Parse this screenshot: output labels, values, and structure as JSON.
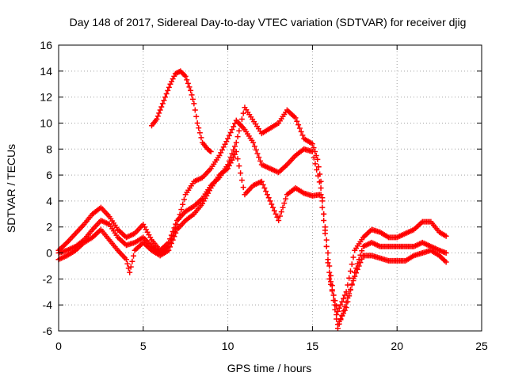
{
  "chart_data": {
    "type": "scatter",
    "title": "Day 148 of 2017, Sidereal Day-to-day VTEC variation (SDTVAR) for receiver djig",
    "xlabel": "GPS time / hours",
    "ylabel": "SDTVAR / TECUs",
    "xlim": [
      0,
      25
    ],
    "ylim": [
      -6,
      16
    ],
    "xticks": [
      "0",
      "5",
      "10",
      "15",
      "20",
      "25"
    ],
    "yticks": [
      "-6",
      "-4",
      "-2",
      "0",
      "2",
      "4",
      "6",
      "8",
      "10",
      "12",
      "14",
      "16"
    ],
    "grid": true,
    "marker": "+",
    "color": "#ff0000",
    "series": [
      {
        "name": "trace-1",
        "points": [
          [
            0,
            0.2
          ],
          [
            0.5,
            0.8
          ],
          [
            1,
            1.5
          ],
          [
            1.5,
            2.2
          ],
          [
            2,
            3
          ],
          [
            2.5,
            3.5
          ],
          [
            3,
            2.8
          ],
          [
            3.5,
            1.8
          ],
          [
            4,
            1.2
          ],
          [
            4.5,
            1.5
          ],
          [
            5,
            2.2
          ],
          [
            5.5,
            1
          ],
          [
            6,
            0.2
          ],
          [
            6.5,
            0.8
          ],
          [
            7,
            2.5
          ],
          [
            7.5,
            3.2
          ],
          [
            8,
            3.6
          ],
          [
            8.5,
            4.2
          ],
          [
            9,
            5.2
          ],
          [
            9.5,
            5.8
          ],
          [
            10,
            6.8
          ],
          [
            10.5,
            8.5
          ],
          [
            11,
            11.2
          ],
          [
            12,
            9.2
          ],
          [
            13,
            10
          ],
          [
            13.5,
            11
          ],
          [
            14,
            10.4
          ],
          [
            14.5,
            8.8
          ],
          [
            15,
            8.4
          ],
          [
            15.3,
            7.2
          ],
          [
            15.5,
            5.5
          ],
          [
            16,
            -2
          ],
          [
            16.5,
            -4.5
          ],
          [
            17,
            -3
          ],
          [
            17.5,
            0.2
          ],
          [
            18,
            1.2
          ],
          [
            18.5,
            1.8
          ],
          [
            19,
            1.6
          ],
          [
            19.5,
            1.2
          ],
          [
            20,
            1.2
          ],
          [
            20.5,
            1.5
          ],
          [
            21,
            1.8
          ],
          [
            21.5,
            2.4
          ],
          [
            22,
            2.4
          ],
          [
            22.5,
            1.6
          ],
          [
            22.9,
            1.3
          ]
        ]
      },
      {
        "name": "trace-2",
        "points": [
          [
            0,
            0
          ],
          [
            0.5,
            0.2
          ],
          [
            1,
            0.5
          ],
          [
            1.5,
            1
          ],
          [
            2,
            1.8
          ],
          [
            2.5,
            2.5
          ],
          [
            3,
            2.2
          ],
          [
            3.5,
            1.2
          ],
          [
            4,
            0.6
          ],
          [
            4.5,
            0.8
          ],
          [
            5,
            1.2
          ],
          [
            5.5,
            0.5
          ],
          [
            6,
            0
          ],
          [
            6.5,
            0.5
          ],
          [
            7,
            2.2
          ],
          [
            7.5,
            4.5
          ],
          [
            8,
            5.5
          ],
          [
            8.5,
            5.8
          ],
          [
            9,
            6.5
          ],
          [
            9.5,
            7.5
          ],
          [
            10,
            8.8
          ],
          [
            10.5,
            10.2
          ],
          [
            11,
            9.5
          ],
          [
            11.5,
            8.5
          ],
          [
            12,
            6.8
          ],
          [
            12.5,
            6.5
          ],
          [
            13,
            6.2
          ],
          [
            13.5,
            6.8
          ],
          [
            14,
            7.5
          ],
          [
            14.5,
            8
          ],
          [
            15,
            7.8
          ],
          [
            15.5,
            5
          ],
          [
            16,
            -1
          ],
          [
            16.5,
            -5.5
          ],
          [
            17,
            -4.2
          ],
          [
            17.5,
            -1.5
          ],
          [
            18,
            0.5
          ],
          [
            18.5,
            0.8
          ],
          [
            19,
            0.5
          ],
          [
            19.5,
            0.5
          ],
          [
            20,
            0.5
          ],
          [
            20.5,
            0.5
          ],
          [
            21,
            0.5
          ],
          [
            21.5,
            0.8
          ],
          [
            22,
            0.5
          ],
          [
            22.5,
            0.2
          ],
          [
            22.9,
            0
          ]
        ]
      },
      {
        "name": "trace-3",
        "points": [
          [
            0,
            -0.5
          ],
          [
            0.5,
            -0.2
          ],
          [
            1,
            0.2
          ],
          [
            1.5,
            0.8
          ],
          [
            2,
            1.2
          ],
          [
            2.5,
            1.8
          ],
          [
            3,
            1
          ],
          [
            3.5,
            0.2
          ],
          [
            4,
            -0.5
          ],
          [
            4.2,
            -1.5
          ],
          [
            4.5,
            0.2
          ],
          [
            5,
            0.8
          ],
          [
            5.5,
            0.2
          ],
          [
            6,
            -0.2
          ],
          [
            6.5,
            0.2
          ],
          [
            7,
            1.8
          ],
          [
            7.5,
            2.5
          ],
          [
            8,
            3
          ],
          [
            8.5,
            3.8
          ],
          [
            9,
            5
          ],
          [
            9.5,
            6
          ],
          [
            10,
            6.5
          ],
          [
            10.5,
            7.8
          ],
          [
            11,
            4.5
          ],
          [
            11.5,
            5.2
          ],
          [
            12,
            5.5
          ],
          [
            12.5,
            4
          ],
          [
            13,
            2.5
          ],
          [
            13.5,
            4.5
          ],
          [
            14,
            5
          ],
          [
            14.5,
            4.6
          ],
          [
            15,
            4.4
          ],
          [
            15.5,
            4.5
          ],
          [
            16,
            -1.5
          ],
          [
            16.5,
            -5.8
          ],
          [
            17,
            -3.8
          ],
          [
            17.5,
            -1.8
          ],
          [
            18,
            -0.2
          ],
          [
            18.5,
            -0.2
          ],
          [
            19,
            -0.4
          ],
          [
            19.5,
            -0.6
          ],
          [
            20,
            -0.6
          ],
          [
            20.5,
            -0.6
          ],
          [
            21,
            -0.2
          ],
          [
            21.5,
            0
          ],
          [
            22,
            0.2
          ],
          [
            22.5,
            -0.2
          ],
          [
            22.9,
            -0.7
          ]
        ]
      },
      {
        "name": "trace-4",
        "points": [
          [
            5.5,
            9.8
          ],
          [
            5.8,
            10.3
          ],
          [
            6,
            11
          ],
          [
            6.3,
            12
          ],
          [
            6.6,
            13
          ],
          [
            6.9,
            13.8
          ],
          [
            7.2,
            14
          ],
          [
            7.5,
            13.6
          ],
          [
            7.8,
            12.5
          ],
          [
            8,
            11.5
          ],
          [
            8.2,
            10
          ],
          [
            8.5,
            8.5
          ],
          [
            8.8,
            8
          ],
          [
            9,
            7.8
          ]
        ]
      }
    ]
  }
}
